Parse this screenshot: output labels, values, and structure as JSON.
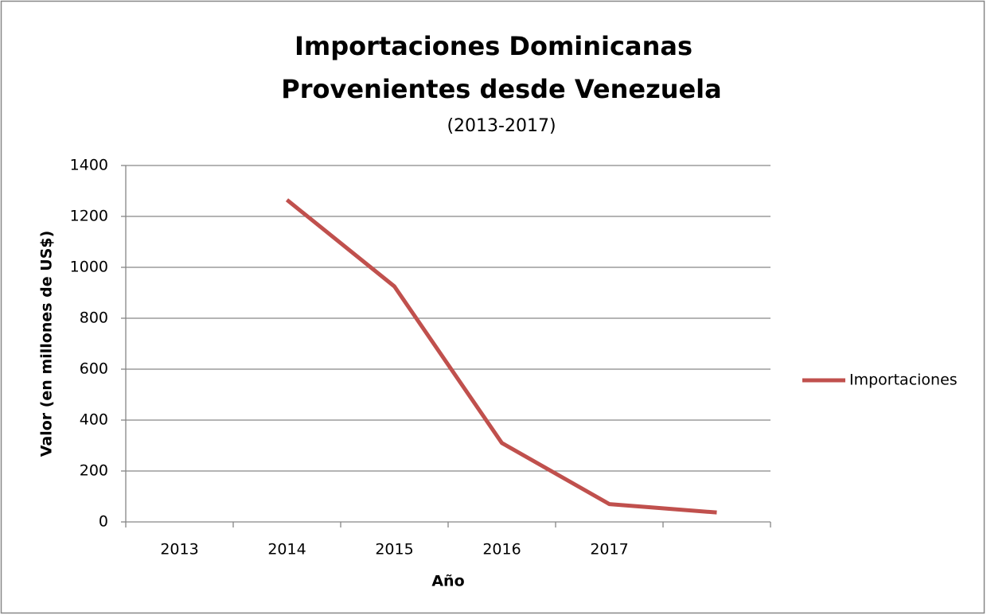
{
  "chart_data": {
    "type": "line",
    "title": [
      "Importaciones Dominicanas",
      "Provenientes desde Venezuela"
    ],
    "subtitle": "(2013-2017)",
    "x_label": "Año",
    "y_label": "Valor (en millones de US$)",
    "categories": [
      "2013",
      "2014",
      "2015",
      "2016",
      "2017",
      null
    ],
    "series": [
      {
        "name": "Importaciones",
        "color": "#c0504d",
        "values": [
          null,
          1265,
          925,
          310,
          70,
          37
        ]
      }
    ],
    "ylim": [
      0,
      1400
    ],
    "yticks": [
      0,
      200,
      400,
      600,
      800,
      1000,
      1200,
      1400
    ],
    "grid": true,
    "legend": "right"
  }
}
